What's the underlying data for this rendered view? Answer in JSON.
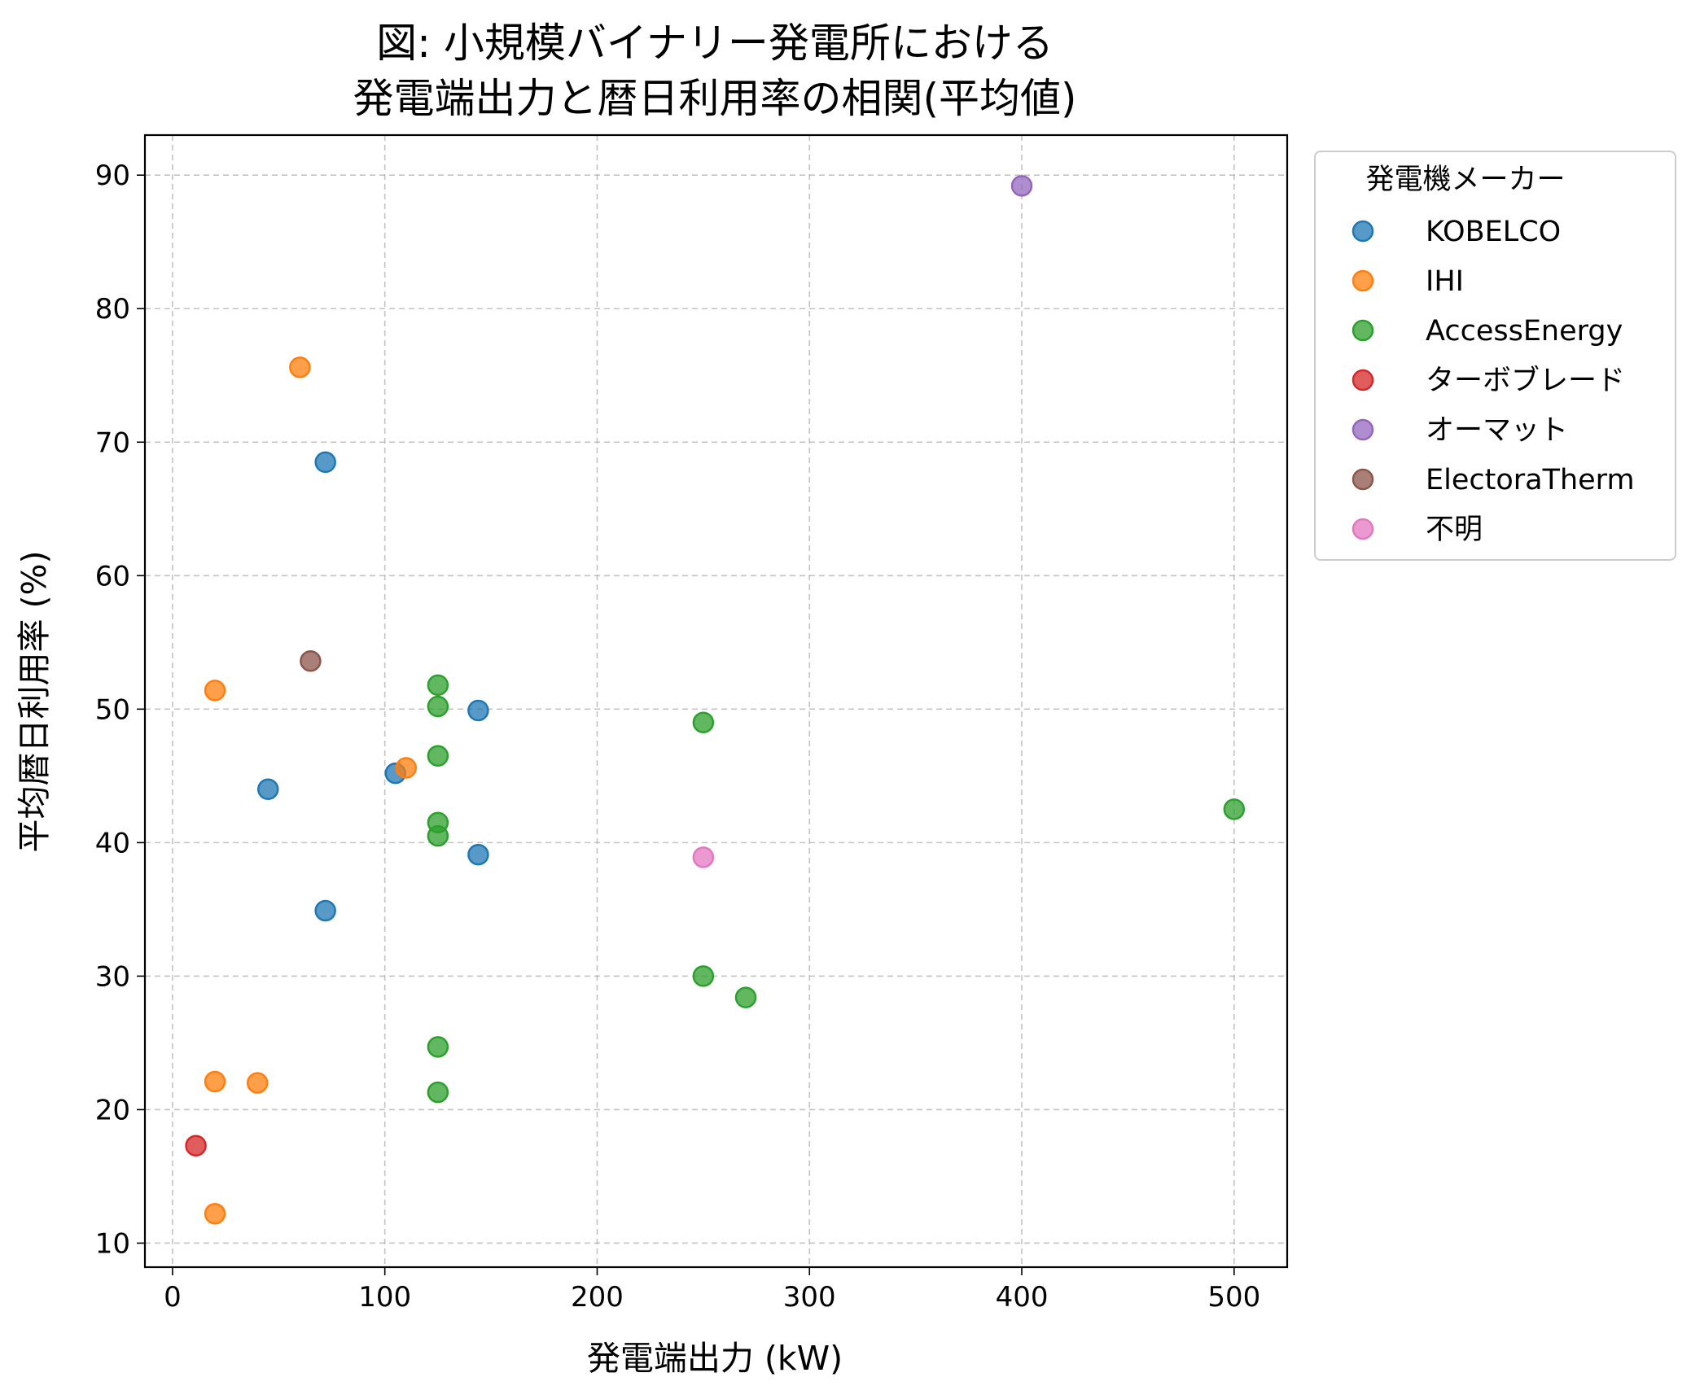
{
  "chart_data": {
    "type": "scatter",
    "title": "図: 小規模バイナリー発電所における\n発電端出力と暦日利用率の相関(平均値)",
    "xlabel": "発電端出力 (kW)",
    "ylabel": "平均暦日利用率 (%)",
    "xlim": [
      -13,
      525
    ],
    "ylim": [
      8.2,
      93
    ],
    "xticks": [
      0,
      100,
      200,
      300,
      400,
      500
    ],
    "yticks": [
      10,
      20,
      30,
      40,
      50,
      60,
      70,
      80,
      90
    ],
    "grid": true,
    "legend_title": "発電機メーカー",
    "legend_position": "outside-top-right",
    "series": [
      {
        "name": "KOBELCO",
        "color": "#1f77b4",
        "points": [
          [
            72,
            68.5
          ],
          [
            144,
            49.9
          ],
          [
            45,
            44.0
          ],
          [
            105,
            45.2
          ],
          [
            144,
            39.1
          ],
          [
            72,
            34.9
          ]
        ]
      },
      {
        "name": "IHI",
        "color": "#ff7f0e",
        "points": [
          [
            60,
            75.6
          ],
          [
            20,
            51.4
          ],
          [
            110,
            45.6
          ],
          [
            20,
            22.1
          ],
          [
            40,
            22.0
          ],
          [
            20,
            12.2
          ]
        ]
      },
      {
        "name": "AccessEnergy",
        "color": "#2ca02c",
        "points": [
          [
            125,
            51.8
          ],
          [
            125,
            50.2
          ],
          [
            125,
            46.5
          ],
          [
            125,
            41.5
          ],
          [
            125,
            40.5
          ],
          [
            250,
            49.0
          ],
          [
            500,
            42.5
          ],
          [
            250,
            30.0
          ],
          [
            270,
            28.4
          ],
          [
            125,
            24.7
          ],
          [
            125,
            21.3
          ]
        ]
      },
      {
        "name": "ターボブレード",
        "color": "#d62728",
        "points": [
          [
            11,
            17.3
          ]
        ]
      },
      {
        "name": "オーマット",
        "color": "#9467bd",
        "points": [
          [
            400,
            89.2
          ]
        ]
      },
      {
        "name": "ElectoraTherm",
        "color": "#8c564b",
        "points": [
          [
            65,
            53.6
          ]
        ]
      },
      {
        "name": "不明",
        "color": "#e377c2",
        "points": [
          [
            250,
            38.9
          ]
        ]
      }
    ]
  }
}
